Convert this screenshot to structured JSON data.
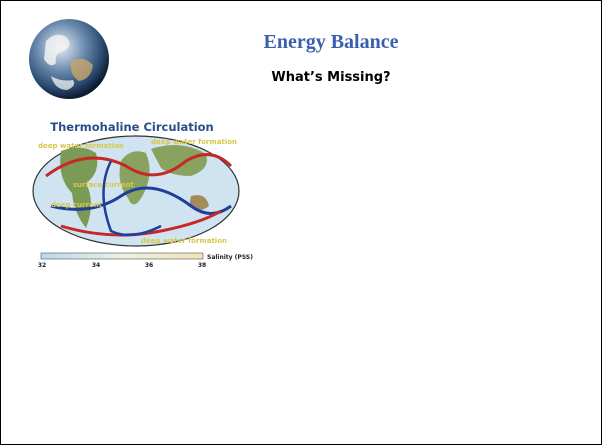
{
  "header": {
    "title": "Energy Balance",
    "subtitle": "What’s Missing?"
  },
  "figure": {
    "title": "Thermohaline Circulation",
    "labels": [
      "deep water formation",
      "deep water formation",
      "surface current",
      "deep current",
      "deep water formation"
    ],
    "colorbar": {
      "label": "Salinity (PSS)",
      "ticks": [
        32,
        34,
        36,
        38
      ]
    }
  }
}
